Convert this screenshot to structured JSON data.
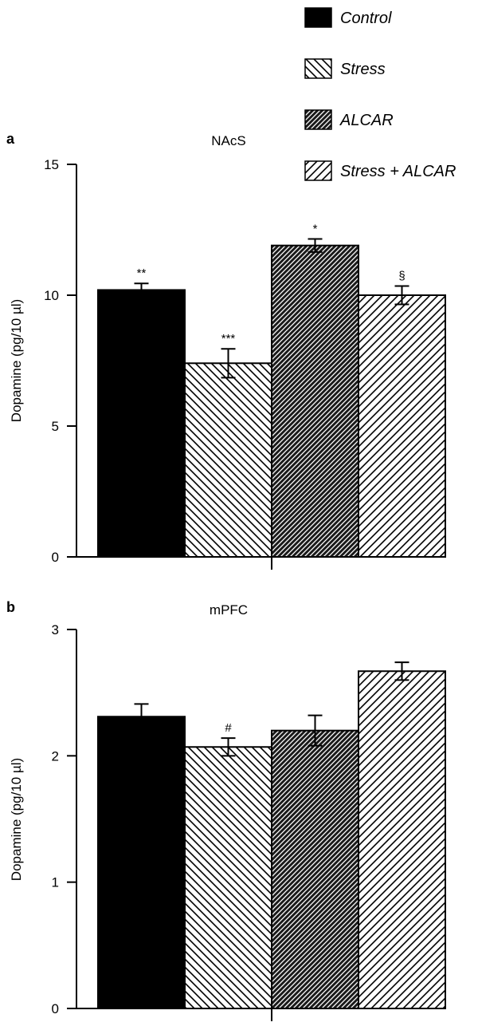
{
  "legend": [
    {
      "label": "Control",
      "pattern": "solid"
    },
    {
      "label": "Stress",
      "pattern": "hatch-back"
    },
    {
      "label": "ALCAR",
      "pattern": "dense"
    },
    {
      "label": "Stress + ALCAR",
      "pattern": "hatch-fwd"
    }
  ],
  "chart_data": [
    {
      "type": "bar",
      "panel": "a",
      "title": "NAcS",
      "ylabel": "Dopamine (pg/10 µl)",
      "xlabel": "",
      "ylim": [
        0,
        15
      ],
      "yticks": [
        0,
        5,
        10,
        15
      ],
      "categories": [
        "Control",
        "Stress",
        "ALCAR",
        "Stress + ALCAR"
      ],
      "values": [
        10.2,
        7.4,
        11.9,
        10.0
      ],
      "errors": [
        0.25,
        0.55,
        0.25,
        0.35
      ],
      "annotations": [
        "**",
        "***",
        "*",
        "§"
      ],
      "grid": false
    },
    {
      "type": "bar",
      "panel": "b",
      "title": "mPFC",
      "ylabel": "Dopamine (pg/10 µl)",
      "xlabel": "",
      "ylim": [
        0,
        3
      ],
      "yticks": [
        0,
        1,
        2,
        3
      ],
      "categories": [
        "Control",
        "Stress",
        "ALCAR",
        "Stress + ALCAR"
      ],
      "values": [
        2.31,
        2.07,
        2.2,
        2.67
      ],
      "errors": [
        0.1,
        0.07,
        0.12,
        0.07
      ],
      "annotations": [
        "",
        "#",
        "",
        ""
      ],
      "grid": false
    }
  ]
}
